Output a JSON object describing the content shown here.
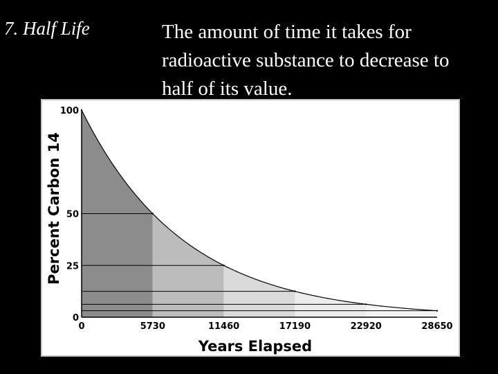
{
  "slide": {
    "title": "7.  Half Life",
    "definition_lines": [
      "The amount of time it takes for",
      "radioactive substance to decrease to",
      "half of its value."
    ]
  },
  "chart_data": {
    "type": "area",
    "xlabel": "Years Elapsed",
    "ylabel": "Percent Carbon 14",
    "x_ticks": [
      "0",
      "5730",
      "11460",
      "17190",
      "22920",
      "28650"
    ],
    "y_ticks": [
      "0",
      "25",
      "50",
      "100"
    ],
    "xlim": [
      0,
      28650
    ],
    "ylim": [
      0,
      100
    ],
    "half_life": 5730,
    "series": [
      {
        "values": [
          {
            "x": 0,
            "y": 100
          },
          {
            "x": 5730,
            "y": 50
          },
          {
            "x": 11460,
            "y": 25
          },
          {
            "x": 17190,
            "y": 12.5
          },
          {
            "x": 22920,
            "y": 6.25
          },
          {
            "x": 28650,
            "y": 3.125
          }
        ]
      }
    ],
    "band_colors": [
      "#8c8c8c",
      "#bcbcbc",
      "#dadada",
      "#ececec",
      "#f4f4f4"
    ]
  }
}
